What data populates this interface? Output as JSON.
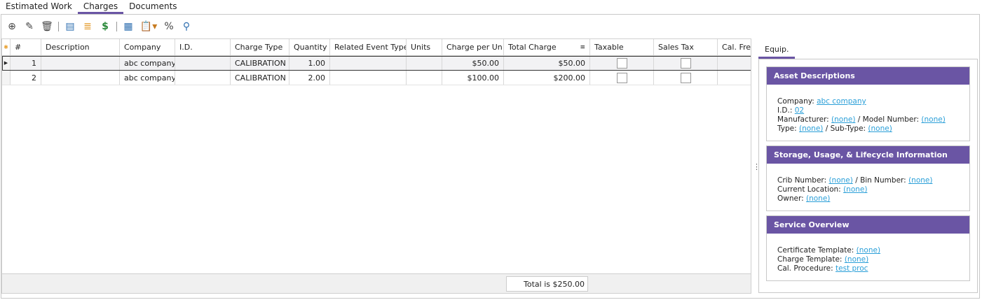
{
  "tabs": [
    "Estimated Work",
    "Charges",
    "Documents"
  ],
  "active_tab": "Charges",
  "toolbar": {
    "icons": [
      "add-icon",
      "wand-icon",
      "delete-icon",
      "grid-settings-icon",
      "coins-icon",
      "price-tag-icon",
      "report-icon",
      "paste-icon",
      "percent-icon",
      "find-icon"
    ],
    "percent": "%"
  },
  "grid": {
    "columns": [
      "#",
      "Description",
      "Company",
      "I.D.",
      "Charge Type",
      "Quantity",
      "Related Event Type",
      "Units",
      "Charge per Un",
      "Total Charge",
      "Taxable",
      "Sales Tax",
      "Cal. Freq"
    ],
    "rows": [
      {
        "num": "1",
        "description": "",
        "company": "abc company",
        "id": "",
        "charge_type": "CALIBRATION",
        "quantity": "1.00",
        "related_event_type": "",
        "units": "",
        "charge_per_unit": "$50.00",
        "total_charge": "$50.00",
        "taxable": false,
        "sales_tax": false
      },
      {
        "num": "2",
        "description": "",
        "company": "abc company",
        "id": "",
        "charge_type": "CALIBRATION",
        "quantity": "2.00",
        "related_event_type": "",
        "units": "",
        "charge_per_unit": "$100.00",
        "total_charge": "$200.00",
        "taxable": false,
        "sales_tax": false
      }
    ],
    "total": "Total is $250.00"
  },
  "right": {
    "tab": "Equip.",
    "asset": {
      "title": "Asset Descriptions",
      "company_label": "Company:",
      "company": "abc company",
      "id_label": "I.D.:",
      "id": "02",
      "manufacturer_label": "Manufacturer:",
      "manufacturer": "(none)",
      "model_label": "/ Model Number:",
      "model": "(none)",
      "type_label": "Type:",
      "type": "(none)",
      "subtype_label": "/ Sub-Type:",
      "subtype": "(none)"
    },
    "storage": {
      "title": "Storage, Usage, & Lifecycle Information",
      "crib_label": "Crib Number:",
      "crib": "(none)",
      "bin_label": "/ Bin Number:",
      "bin": "(none)",
      "location_label": "Current Location:",
      "location": "(none)",
      "owner_label": "Owner:",
      "owner": "(none)"
    },
    "service": {
      "title": "Service Overview",
      "cert_label": "Certificate Template:",
      "cert": "(none)",
      "charge_label": "Charge Template:",
      "charge": "(none)",
      "proc_label": "Cal. Procedure:",
      "proc": "test proc"
    }
  }
}
